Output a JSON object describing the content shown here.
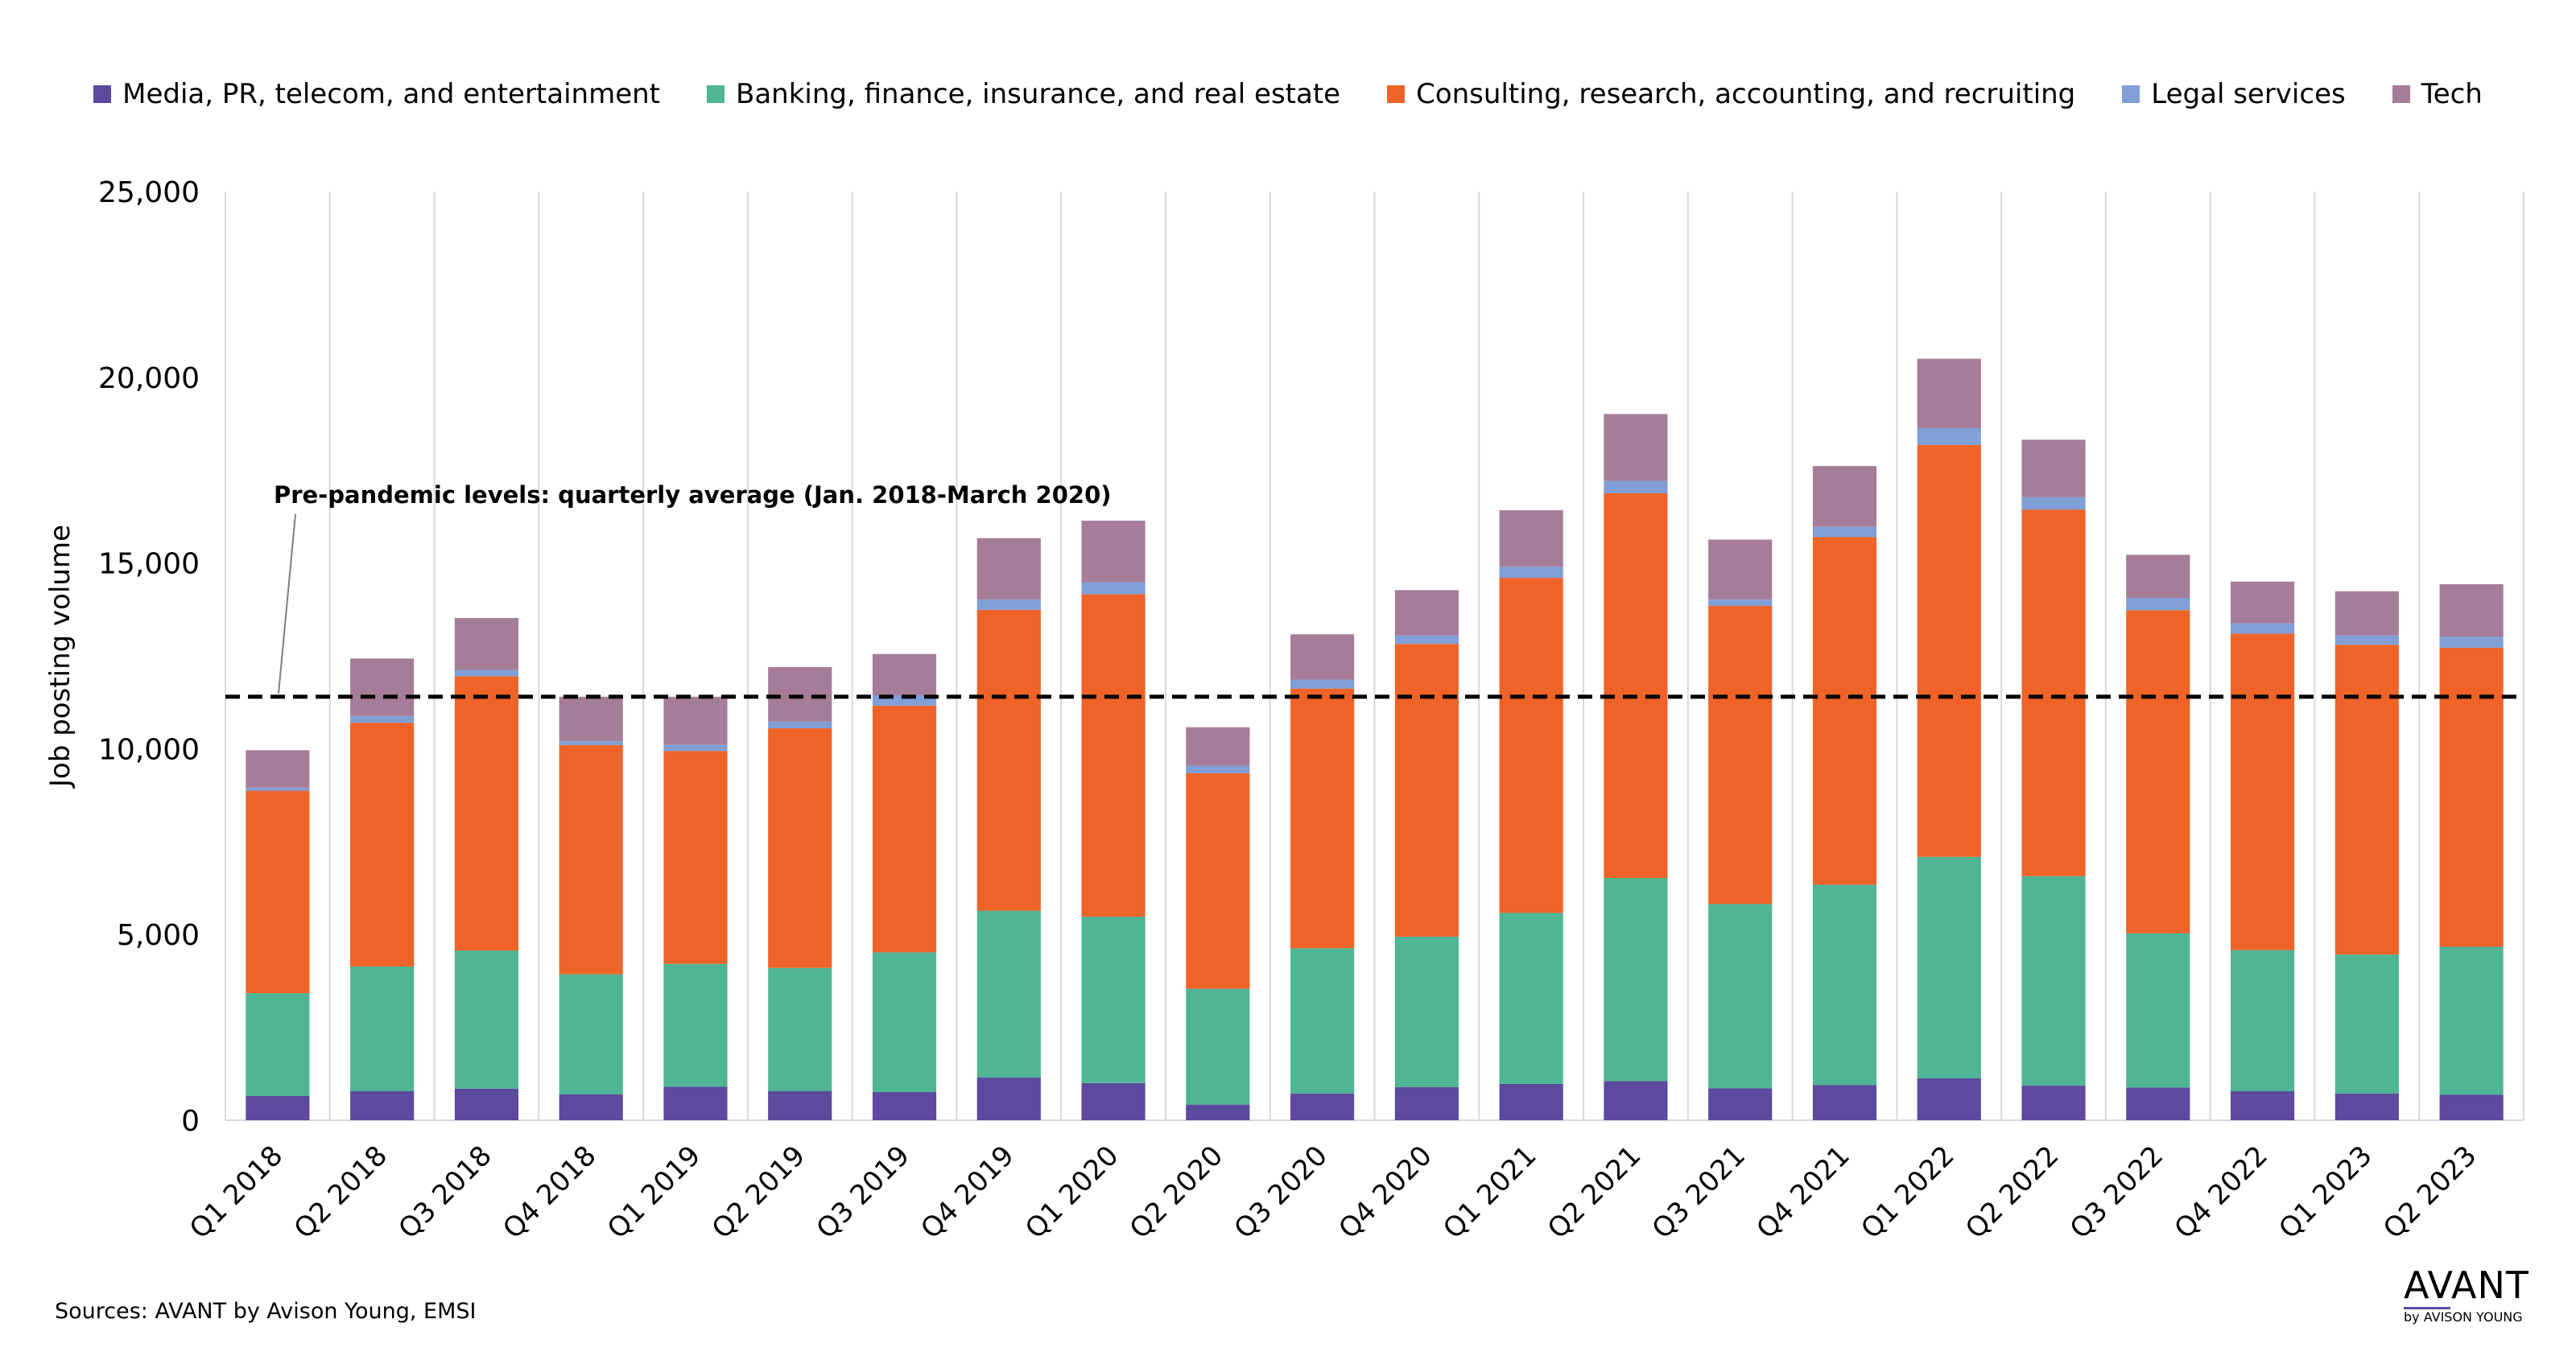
{
  "chart_data": {
    "type": "bar",
    "stacked": true,
    "title": "",
    "xlabel": "",
    "ylabel": "Job posting volume",
    "ylim": [
      0,
      25000
    ],
    "yticks": [
      0,
      5000,
      10000,
      15000,
      20000,
      25000
    ],
    "ytick_labels": [
      "0",
      "5,000",
      "10,000",
      "15,000",
      "20,000",
      "25,000"
    ],
    "grid": "vertical",
    "legend_position": "top",
    "categories": [
      "Q1 2018",
      "Q2 2018",
      "Q3 2018",
      "Q4 2018",
      "Q1 2019",
      "Q2 2019",
      "Q3 2019",
      "Q4 2019",
      "Q1 2020",
      "Q2 2020",
      "Q3 2020",
      "Q4 2020",
      "Q1 2021",
      "Q2 2021",
      "Q3 2021",
      "Q4 2021",
      "Q1 2022",
      "Q2 2022",
      "Q3 2022",
      "Q4 2022",
      "Q1 2023",
      "Q2 2023"
    ],
    "series": [
      {
        "name": "Media, PR, telecom, and entertainment",
        "color": "#5b4a9e",
        "values": [
          650,
          780,
          850,
          700,
          900,
          780,
          760,
          1150,
          1000,
          420,
          720,
          890,
          980,
          1050,
          860,
          950,
          1130,
          930,
          880,
          780,
          720,
          690
        ]
      },
      {
        "name": "Banking, finance, insurance, and real estate",
        "color": "#4fb595",
        "values": [
          2770,
          3360,
          3720,
          3230,
          3310,
          3320,
          3760,
          4490,
          4480,
          3120,
          3910,
          4050,
          4600,
          5470,
          4960,
          5390,
          5960,
          5640,
          4150,
          3800,
          3740,
          3980
        ]
      },
      {
        "name": "Consulting, research, accounting, and recruiting",
        "color": "#ef6328",
        "values": [
          5450,
          6560,
          7380,
          6170,
          5730,
          6450,
          6640,
          8100,
          8680,
          5800,
          6990,
          7880,
          9020,
          10360,
          8030,
          9360,
          11090,
          9870,
          8700,
          8520,
          8340,
          8050
        ]
      },
      {
        "name": "Legal services",
        "color": "#7f9fd6",
        "values": [
          80,
          180,
          170,
          100,
          170,
          180,
          280,
          280,
          320,
          200,
          240,
          230,
          300,
          330,
          170,
          280,
          450,
          330,
          330,
          280,
          250,
          300
        ]
      },
      {
        "name": "Tech",
        "color": "#a67d98",
        "values": [
          1010,
          1550,
          1400,
          1200,
          1290,
          1470,
          1110,
          1650,
          1660,
          1040,
          1220,
          1220,
          1520,
          1800,
          1610,
          1630,
          1870,
          1550,
          1160,
          1120,
          1190,
          1410
        ]
      }
    ],
    "reference_line": {
      "value": 11400,
      "style": "dashed",
      "label": "Pre-pandemic levels: quarterly average (Jan. 2018-March 2020)"
    }
  },
  "source_note": "Sources: AVANT by Avison Young, EMSI",
  "logo": {
    "main": "AVANT",
    "sub": "by AVISON YOUNG"
  }
}
